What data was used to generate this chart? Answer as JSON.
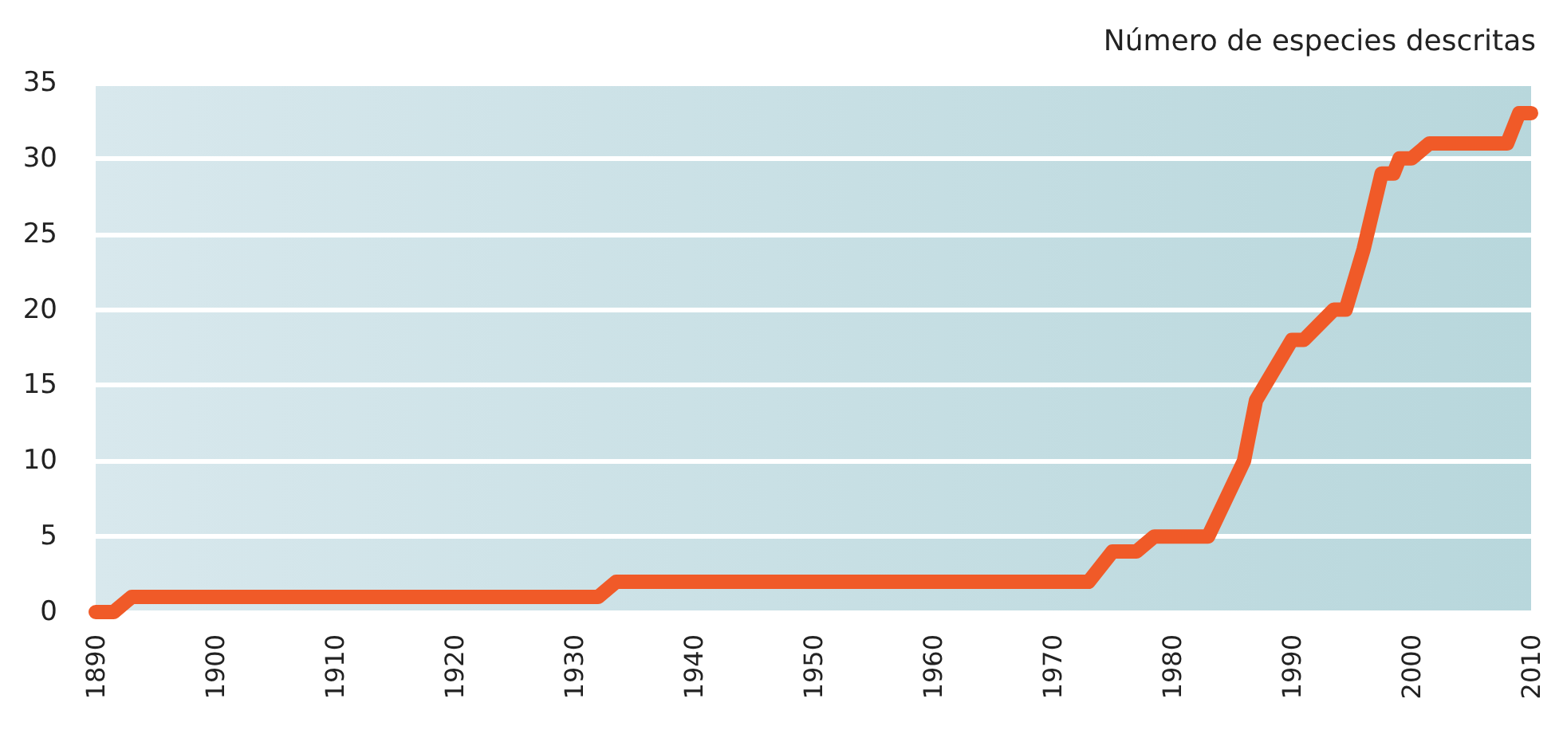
{
  "chart_data": {
    "type": "line",
    "ylabel": "Número de especies descritas",
    "x": [
      1890,
      1891.5,
      1893,
      1932,
      1933.5,
      1973,
      1975,
      1977,
      1978.5,
      1983,
      1986,
      1987,
      1990,
      1991,
      1993.5,
      1994.5,
      1996,
      1997.5,
      1998.5,
      1999,
      2000,
      2001.5,
      2008,
      2009,
      2010
    ],
    "series": [
      {
        "color": "#f05a28",
        "values": [
          0,
          0,
          1,
          1,
          2,
          2,
          4,
          4,
          5,
          5,
          10,
          14,
          18,
          18,
          20,
          20,
          24,
          29,
          29,
          30,
          30,
          31,
          31,
          33,
          33
        ]
      }
    ],
    "xlim": [
      1890,
      2010
    ],
    "xticks": [
      1890,
      1900,
      1910,
      1920,
      1930,
      1940,
      1950,
      1960,
      1970,
      1980,
      1990,
      2000,
      2010
    ],
    "ylim": [
      0,
      35
    ],
    "yticks": [
      0,
      5,
      10,
      15,
      20,
      25,
      30,
      35
    ],
    "grid": "y",
    "line_style": "solid"
  }
}
